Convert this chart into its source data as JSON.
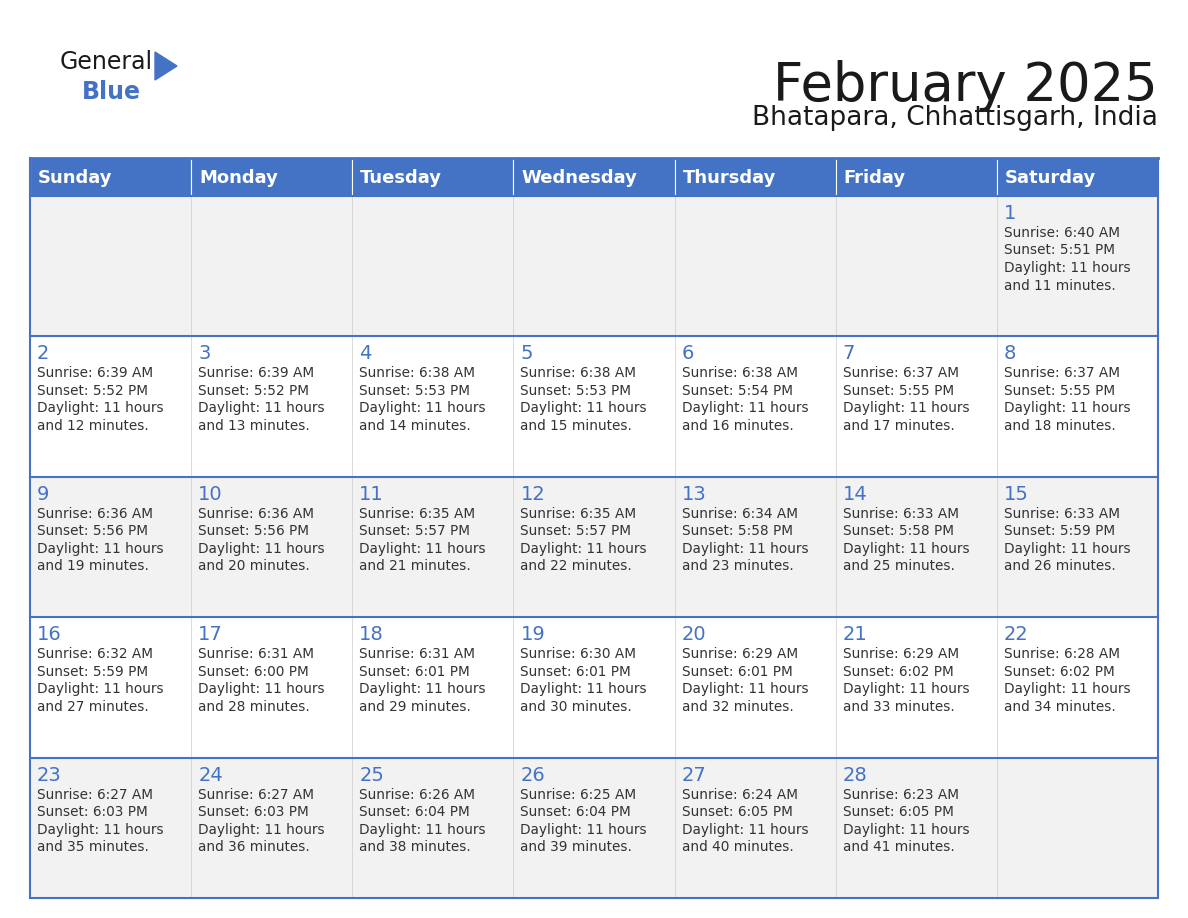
{
  "title": "February 2025",
  "subtitle": "Bhatapara, Chhattisgarh, India",
  "header_bg": "#4472C4",
  "header_text": "#FFFFFF",
  "row_bg": [
    "#F2F2F2",
    "#FFFFFF",
    "#F2F2F2",
    "#FFFFFF",
    "#F2F2F2"
  ],
  "border_color": "#4472C4",
  "cell_border_color": "#AAAAAA",
  "days_of_week": [
    "Sunday",
    "Monday",
    "Tuesday",
    "Wednesday",
    "Thursday",
    "Friday",
    "Saturday"
  ],
  "title_color": "#1a1a1a",
  "subtitle_color": "#1a1a1a",
  "day_number_color": "#4472C4",
  "info_color": "#333333",
  "logo_general_color": "#1a1a1a",
  "logo_blue_color": "#4472C4",
  "logo_triangle_color": "#4472C4",
  "calendar": [
    [
      null,
      null,
      null,
      null,
      null,
      null,
      {
        "day": 1,
        "sunrise": "6:40 AM",
        "sunset": "5:51 PM",
        "daylight": "11 hours and 11 minutes."
      }
    ],
    [
      {
        "day": 2,
        "sunrise": "6:39 AM",
        "sunset": "5:52 PM",
        "daylight": "11 hours and 12 minutes."
      },
      {
        "day": 3,
        "sunrise": "6:39 AM",
        "sunset": "5:52 PM",
        "daylight": "11 hours and 13 minutes."
      },
      {
        "day": 4,
        "sunrise": "6:38 AM",
        "sunset": "5:53 PM",
        "daylight": "11 hours and 14 minutes."
      },
      {
        "day": 5,
        "sunrise": "6:38 AM",
        "sunset": "5:53 PM",
        "daylight": "11 hours and 15 minutes."
      },
      {
        "day": 6,
        "sunrise": "6:38 AM",
        "sunset": "5:54 PM",
        "daylight": "11 hours and 16 minutes."
      },
      {
        "day": 7,
        "sunrise": "6:37 AM",
        "sunset": "5:55 PM",
        "daylight": "11 hours and 17 minutes."
      },
      {
        "day": 8,
        "sunrise": "6:37 AM",
        "sunset": "5:55 PM",
        "daylight": "11 hours and 18 minutes."
      }
    ],
    [
      {
        "day": 9,
        "sunrise": "6:36 AM",
        "sunset": "5:56 PM",
        "daylight": "11 hours and 19 minutes."
      },
      {
        "day": 10,
        "sunrise": "6:36 AM",
        "sunset": "5:56 PM",
        "daylight": "11 hours and 20 minutes."
      },
      {
        "day": 11,
        "sunrise": "6:35 AM",
        "sunset": "5:57 PM",
        "daylight": "11 hours and 21 minutes."
      },
      {
        "day": 12,
        "sunrise": "6:35 AM",
        "sunset": "5:57 PM",
        "daylight": "11 hours and 22 minutes."
      },
      {
        "day": 13,
        "sunrise": "6:34 AM",
        "sunset": "5:58 PM",
        "daylight": "11 hours and 23 minutes."
      },
      {
        "day": 14,
        "sunrise": "6:33 AM",
        "sunset": "5:58 PM",
        "daylight": "11 hours and 25 minutes."
      },
      {
        "day": 15,
        "sunrise": "6:33 AM",
        "sunset": "5:59 PM",
        "daylight": "11 hours and 26 minutes."
      }
    ],
    [
      {
        "day": 16,
        "sunrise": "6:32 AM",
        "sunset": "5:59 PM",
        "daylight": "11 hours and 27 minutes."
      },
      {
        "day": 17,
        "sunrise": "6:31 AM",
        "sunset": "6:00 PM",
        "daylight": "11 hours and 28 minutes."
      },
      {
        "day": 18,
        "sunrise": "6:31 AM",
        "sunset": "6:01 PM",
        "daylight": "11 hours and 29 minutes."
      },
      {
        "day": 19,
        "sunrise": "6:30 AM",
        "sunset": "6:01 PM",
        "daylight": "11 hours and 30 minutes."
      },
      {
        "day": 20,
        "sunrise": "6:29 AM",
        "sunset": "6:01 PM",
        "daylight": "11 hours and 32 minutes."
      },
      {
        "day": 21,
        "sunrise": "6:29 AM",
        "sunset": "6:02 PM",
        "daylight": "11 hours and 33 minutes."
      },
      {
        "day": 22,
        "sunrise": "6:28 AM",
        "sunset": "6:02 PM",
        "daylight": "11 hours and 34 minutes."
      }
    ],
    [
      {
        "day": 23,
        "sunrise": "6:27 AM",
        "sunset": "6:03 PM",
        "daylight": "11 hours and 35 minutes."
      },
      {
        "day": 24,
        "sunrise": "6:27 AM",
        "sunset": "6:03 PM",
        "daylight": "11 hours and 36 minutes."
      },
      {
        "day": 25,
        "sunrise": "6:26 AM",
        "sunset": "6:04 PM",
        "daylight": "11 hours and 38 minutes."
      },
      {
        "day": 26,
        "sunrise": "6:25 AM",
        "sunset": "6:04 PM",
        "daylight": "11 hours and 39 minutes."
      },
      {
        "day": 27,
        "sunrise": "6:24 AM",
        "sunset": "6:05 PM",
        "daylight": "11 hours and 40 minutes."
      },
      {
        "day": 28,
        "sunrise": "6:23 AM",
        "sunset": "6:05 PM",
        "daylight": "11 hours and 41 minutes."
      },
      null
    ]
  ]
}
